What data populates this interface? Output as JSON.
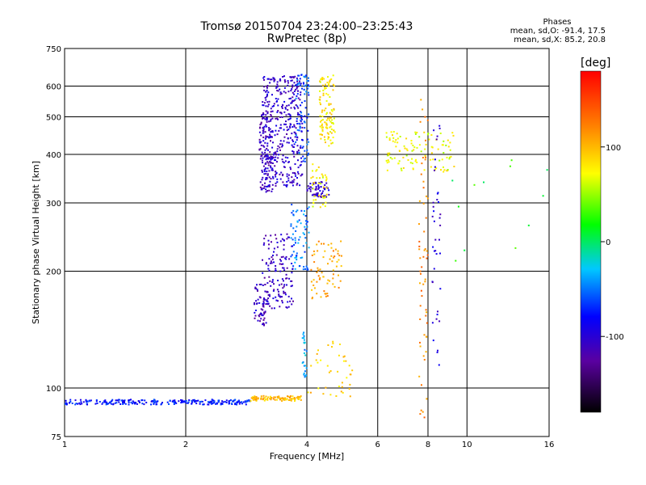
{
  "header": {
    "title": "Tromsø 20150704 23:24:00–23:25:43",
    "subtitle": "RwPretec (8p)"
  },
  "phases_box": {
    "heading": "Phases",
    "line_o": "mean, sd,O: -91.4, 17.5",
    "line_x": "mean, sd,X:  85.2, 20.8"
  },
  "colorbar": {
    "label": "[deg]",
    "range": [
      -180,
      180
    ],
    "ticks": [
      100,
      0,
      -100
    ],
    "tick_labels": [
      "100",
      "0",
      "-100"
    ]
  },
  "chart_data": {
    "type": "scatter",
    "title": "Tromsø 20150704 23:24:00–23:25:43",
    "subtitle": "RwPretec (8p)",
    "xlabel": "Frequency [MHz]",
    "ylabel": "Stationary phase Virtual Height [km]",
    "xscale": "log",
    "yscale": "log",
    "xlim": [
      1,
      16
    ],
    "ylim": [
      75,
      750
    ],
    "xticks": [
      1,
      2,
      4,
      6,
      8,
      10,
      16
    ],
    "xtick_labels": [
      "1",
      "2",
      "4",
      "6",
      "8",
      "10",
      "16"
    ],
    "yticks": [
      75,
      100,
      200,
      300,
      400,
      500,
      600,
      750
    ],
    "ytick_labels": [
      "75",
      "100",
      "200",
      "300",
      "400",
      "500",
      "600",
      "750"
    ],
    "grid": true,
    "color_by": "phase [deg]",
    "series": [
      {
        "x_range": [
          1.0,
          2.9
        ],
        "y": 92,
        "phase": -75,
        "count": 260
      },
      {
        "x_range": [
          2.9,
          3.9
        ],
        "y": 94,
        "phase": 100,
        "count": 90
      },
      {
        "x_range": [
          3.05,
          3.3
        ],
        "y_range": [
          320,
          520
        ],
        "phase": -110,
        "count": 120
      },
      {
        "x_range": [
          3.1,
          3.9
        ],
        "y_range": [
          330,
          640
        ],
        "phase": -105,
        "count": 380
      },
      {
        "x_range": [
          3.75,
          4.05
        ],
        "y_range": [
          380,
          650
        ],
        "phase": -60,
        "count": 80
      },
      {
        "x_range": [
          4.0,
          4.55
        ],
        "y_range": [
          310,
          340
        ],
        "phase": -105,
        "count": 60
      },
      {
        "x_range": [
          4.3,
          4.7
        ],
        "y_range": [
          420,
          640
        ],
        "phase": 80,
        "count": 110
      },
      {
        "x_range": [
          4.1,
          4.5
        ],
        "y_range": [
          290,
          380
        ],
        "phase": 75,
        "count": 40
      },
      {
        "x_range": [
          2.95,
          3.2
        ],
        "y_range": [
          145,
          185
        ],
        "phase": -110,
        "count": 60
      },
      {
        "x_range": [
          3.1,
          3.7
        ],
        "y_range": [
          160,
          250
        ],
        "phase": -108,
        "count": 140
      },
      {
        "x_range": [
          3.65,
          4.05
        ],
        "y_range": [
          200,
          300
        ],
        "phase": -50,
        "count": 70
      },
      {
        "x_range": [
          4.1,
          4.9
        ],
        "y_range": [
          170,
          240
        ],
        "phase": 110,
        "count": 70
      },
      {
        "x_range": [
          3.9,
          4.0
        ],
        "y_range": [
          105,
          140
        ],
        "phase": -40,
        "count": 25
      },
      {
        "x_range": [
          4.0,
          5.2
        ],
        "y_range": [
          95,
          135
        ],
        "phase": 90,
        "count": 40
      },
      {
        "x_range": [
          6.3,
          9.3
        ],
        "y_range": [
          360,
          460
        ],
        "phase": 70,
        "count": 110
      },
      {
        "x_range": [
          7.6,
          8.0
        ],
        "y_range": [
          80,
          600
        ],
        "phase": 120,
        "count": 60
      },
      {
        "x_range": [
          8.2,
          8.6
        ],
        "y_range": [
          110,
          520
        ],
        "phase": -100,
        "count": 40
      },
      {
        "x_range": [
          9.0,
          16.0
        ],
        "y_range": [
          200,
          420
        ],
        "phase": 20,
        "count": 12
      }
    ]
  }
}
